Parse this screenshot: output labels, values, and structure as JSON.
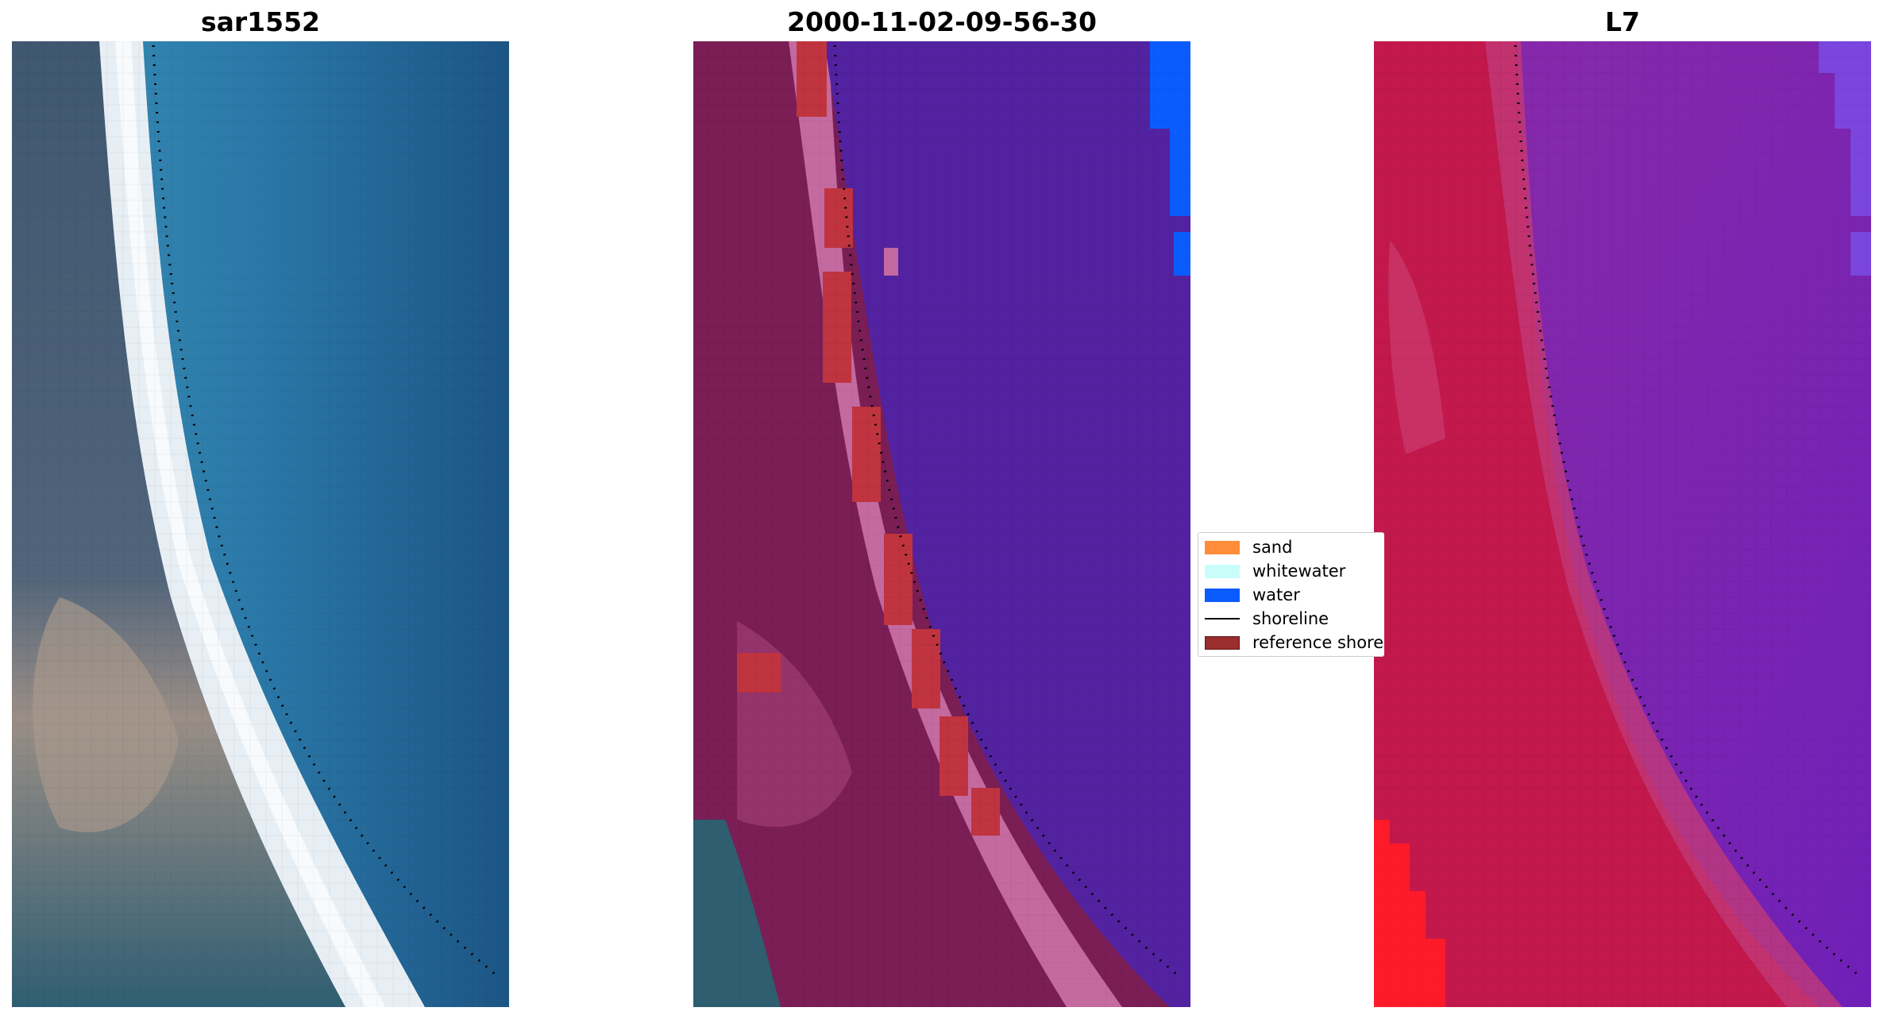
{
  "panels": [
    {
      "title": "sar1552"
    },
    {
      "title": "2000-11-02-09-56-30"
    },
    {
      "title": "L7"
    }
  ],
  "legend": {
    "items": [
      {
        "label": "sand",
        "color": "#ff8c3a",
        "kind": "patch"
      },
      {
        "label": "whitewater",
        "color": "#c8fdfa",
        "kind": "patch"
      },
      {
        "label": "water",
        "color": "#0b5cff",
        "kind": "patch"
      },
      {
        "label": "shoreline",
        "color": "#000000",
        "kind": "line"
      },
      {
        "label": "reference shoreline",
        "color": "#9a2d2d",
        "kind": "patch"
      }
    ]
  },
  "colors": {
    "rgb_water": "#2a7aa8",
    "rgb_land": "#3f5a74",
    "rgb_beach": "#e6eef5",
    "class_water": "#5322a0",
    "class_land": "#7a1e55",
    "swir_land": "#c2184c",
    "swir_water": "#7a22b0"
  }
}
